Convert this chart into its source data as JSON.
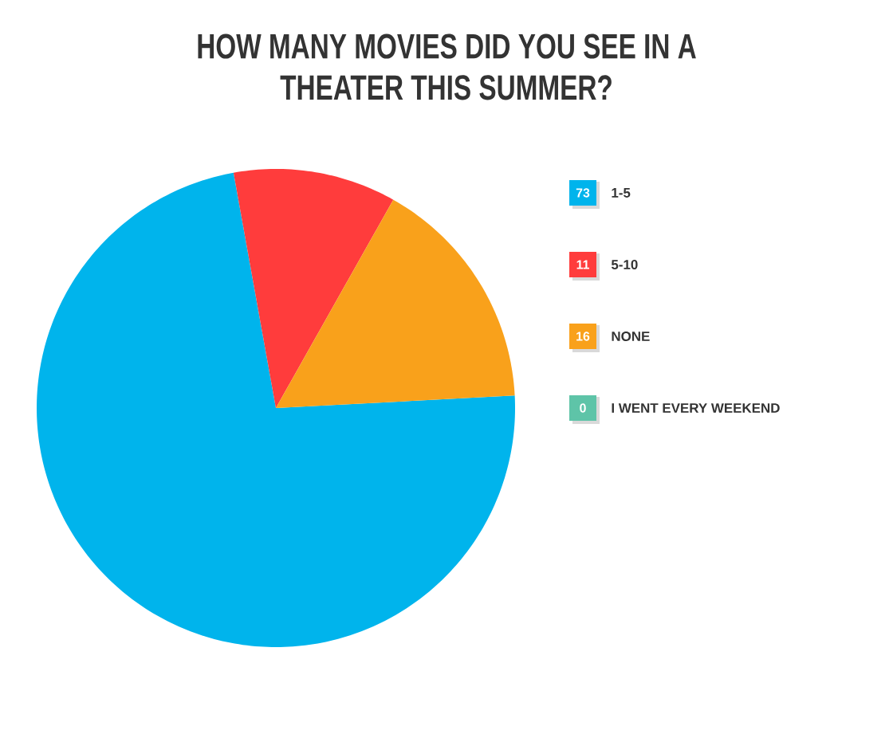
{
  "chart_data": {
    "type": "pie",
    "title": "HOW MANY MOVIES DID YOU SEE IN A THEATER THIS SUMMER?",
    "categories": [
      "1-5",
      "5-10",
      "NONE",
      "I WENT EVERY WEEKEND"
    ],
    "values": [
      73,
      11,
      16,
      0
    ],
    "colors": [
      "#00b4ec",
      "#ff3c3c",
      "#f9a11b",
      "#5ec4a8"
    ],
    "value_labels": [
      "73",
      "11",
      "16",
      "0"
    ],
    "legend": "right"
  }
}
